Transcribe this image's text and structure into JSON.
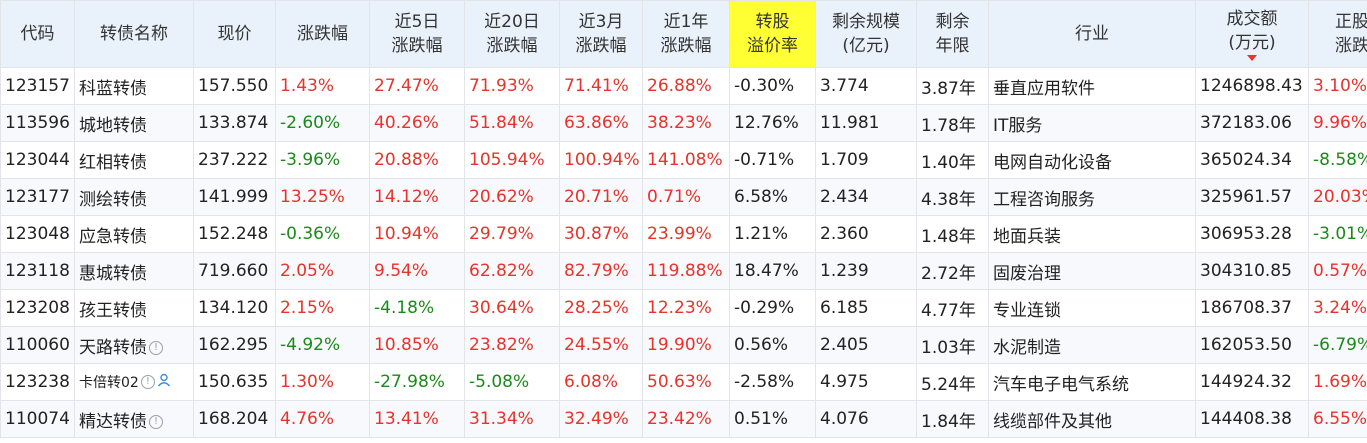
{
  "colors": {
    "up": "#e8322a",
    "down": "#1a8a1a",
    "code": "#2a66b4",
    "highlight": "#ffff33",
    "header_bg": "#e9f1fb"
  },
  "headers": {
    "code": "代码",
    "name": "转债名称",
    "price": "现价",
    "change": "涨跌幅",
    "d5_l1": "近5日",
    "d5_l2": "涨跌幅",
    "d20_l1": "近20日",
    "d20_l2": "涨跌幅",
    "m3_l1": "近3月",
    "m3_l2": "涨跌幅",
    "y1_l1": "近1年",
    "y1_l2": "涨跌幅",
    "premium_l1": "转股",
    "premium_l2": "溢价率",
    "scale_l1": "剩余规模",
    "scale_l2": "(亿元)",
    "years_l1": "剩余",
    "years_l2": "年限",
    "industry": "行业",
    "volume_l1": "成交额",
    "volume_l2": "(万元)",
    "stock_l1": "正股",
    "stock_l2": "涨跌"
  },
  "rows": [
    {
      "code": "123157",
      "name": "科蓝转债",
      "price": "157.550",
      "change": "1.43%",
      "d5": "27.47%",
      "d20": "71.93%",
      "m3": "71.41%",
      "y1": "26.88%",
      "premium": "-0.30%",
      "scale": "3.774",
      "years": "3.87年",
      "industry": "垂直应用软件",
      "volume": "1246898.43",
      "stock": "3.10%"
    },
    {
      "code": "113596",
      "name": "城地转债",
      "price": "133.874",
      "change": "-2.60%",
      "d5": "40.26%",
      "d20": "51.84%",
      "m3": "63.86%",
      "y1": "38.23%",
      "premium": "12.76%",
      "scale": "11.981",
      "years": "1.78年",
      "industry": "IT服务",
      "volume": "372183.06",
      "stock": "9.96%"
    },
    {
      "code": "123044",
      "name": "红相转债",
      "price": "237.222",
      "change": "-3.96%",
      "d5": "20.88%",
      "d20": "105.94%",
      "m3": "100.94%",
      "y1": "141.08%",
      "premium": "-0.71%",
      "scale": "1.709",
      "years": "1.40年",
      "industry": "电网自动化设备",
      "volume": "365024.34",
      "stock": "-8.58%"
    },
    {
      "code": "123177",
      "name": "测绘转债",
      "price": "141.999",
      "change": "13.25%",
      "d5": "14.12%",
      "d20": "20.62%",
      "m3": "20.71%",
      "y1": "0.71%",
      "premium": "6.58%",
      "scale": "2.434",
      "years": "4.38年",
      "industry": "工程咨询服务",
      "volume": "325961.57",
      "stock": "20.03%"
    },
    {
      "code": "123048",
      "name": "应急转债",
      "price": "152.248",
      "change": "-0.36%",
      "d5": "10.94%",
      "d20": "29.79%",
      "m3": "30.87%",
      "y1": "23.99%",
      "premium": "1.21%",
      "scale": "2.360",
      "years": "1.48年",
      "industry": "地面兵装",
      "volume": "306953.28",
      "stock": "-3.01%"
    },
    {
      "code": "123118",
      "name": "惠城转债",
      "price": "719.660",
      "change": "2.05%",
      "d5": "9.54%",
      "d20": "62.82%",
      "m3": "82.79%",
      "y1": "119.88%",
      "premium": "18.47%",
      "scale": "1.239",
      "years": "2.72年",
      "industry": "固废治理",
      "volume": "304310.85",
      "stock": "0.57%"
    },
    {
      "code": "123208",
      "name": "孩王转债",
      "price": "134.120",
      "change": "2.15%",
      "d5": "-4.18%",
      "d20": "30.64%",
      "m3": "28.25%",
      "y1": "12.23%",
      "premium": "-0.29%",
      "scale": "6.185",
      "years": "4.77年",
      "industry": "专业连锁",
      "volume": "186708.37",
      "stock": "3.24%"
    },
    {
      "code": "110060",
      "name": "天路转债",
      "price": "162.295",
      "change": "-4.92%",
      "d5": "10.85%",
      "d20": "23.82%",
      "m3": "24.55%",
      "y1": "19.90%",
      "premium": "0.56%",
      "scale": "2.405",
      "years": "1.03年",
      "industry": "水泥制造",
      "volume": "162053.50",
      "stock": "-6.79%"
    },
    {
      "code": "123238",
      "name": "卡倍转02",
      "price": "150.635",
      "change": "1.30%",
      "d5": "-27.98%",
      "d20": "-5.08%",
      "m3": "6.08%",
      "y1": "50.63%",
      "premium": "-2.58%",
      "scale": "4.975",
      "years": "5.24年",
      "industry": "汽车电子电气系统",
      "volume": "144924.32",
      "stock": "1.69%"
    },
    {
      "code": "110074",
      "name": "精达转债",
      "price": "168.204",
      "change": "4.76%",
      "d5": "13.41%",
      "d20": "31.34%",
      "m3": "32.49%",
      "y1": "23.42%",
      "premium": "0.51%",
      "scale": "4.076",
      "years": "1.84年",
      "industry": "线缆部件及其他",
      "volume": "144408.38",
      "stock": "6.55%"
    }
  ],
  "row_icons": {
    "110060": [
      "info-icon"
    ],
    "123238": [
      "info-icon",
      "user-icon"
    ],
    "110074": [
      "info-icon"
    ]
  }
}
